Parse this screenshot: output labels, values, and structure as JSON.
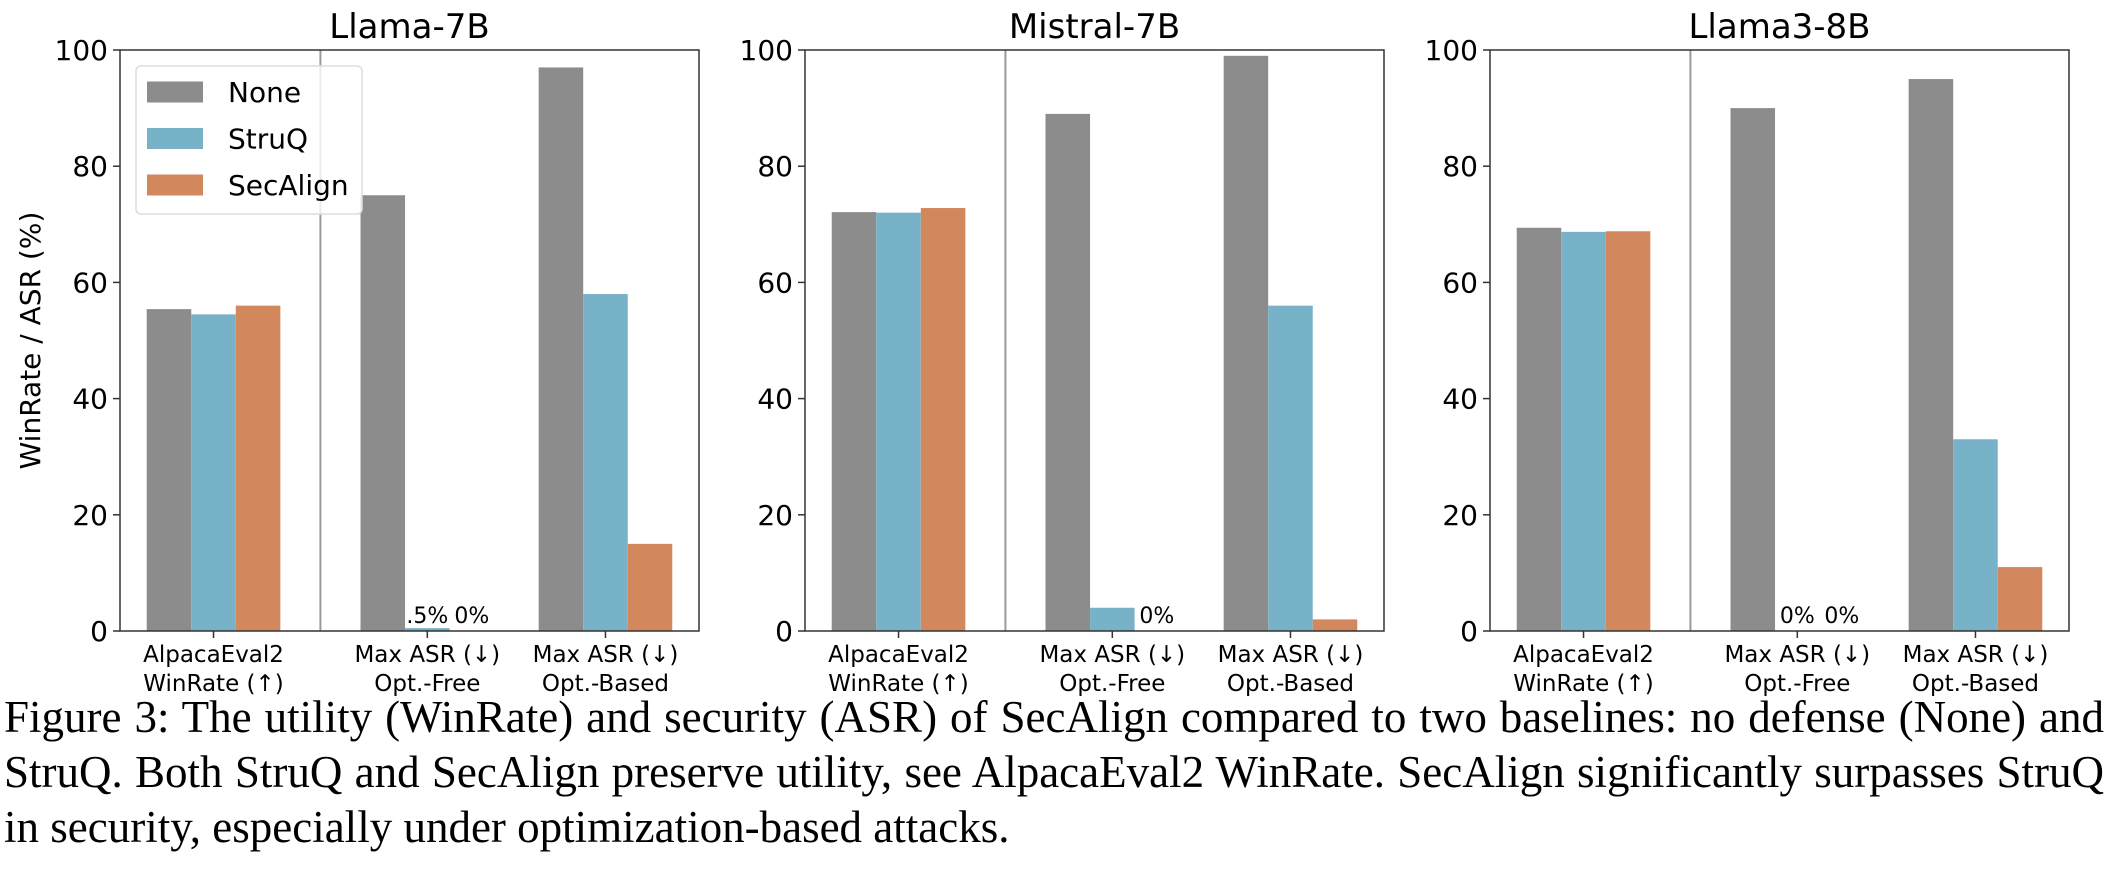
{
  "chart_data": [
    {
      "type": "bar",
      "title": "Llama-7B",
      "ylabel": "WinRate / ASR (%)",
      "ylim": [
        0,
        100
      ],
      "yticks": [
        0,
        20,
        40,
        60,
        80,
        100
      ],
      "categories": [
        "AlpacaEval2\nWinRate (↑)",
        "Max ASR (↓)\nOpt.-Free",
        "Max ASR (↓)\nOpt.-Based"
      ],
      "series": [
        {
          "name": "None",
          "values": [
            55.4,
            75,
            97
          ],
          "labels": [
            null,
            null,
            null
          ]
        },
        {
          "name": "StruQ",
          "values": [
            54.5,
            0.5,
            58
          ],
          "labels": [
            null,
            ".5%",
            null
          ]
        },
        {
          "name": "SecAlign",
          "values": [
            56,
            0,
            15
          ],
          "labels": [
            null,
            "0%",
            null
          ]
        }
      ],
      "legend": "upper-left",
      "grid": false
    },
    {
      "type": "bar",
      "title": "Mistral-7B",
      "ylim": [
        0,
        100
      ],
      "yticks": [
        0,
        20,
        40,
        60,
        80,
        100
      ],
      "categories": [
        "AlpacaEval2\nWinRate (↑)",
        "Max ASR (↓)\nOpt.-Free",
        "Max ASR (↓)\nOpt.-Based"
      ],
      "series": [
        {
          "name": "None",
          "values": [
            72.1,
            89,
            99
          ],
          "labels": [
            null,
            null,
            null
          ]
        },
        {
          "name": "StruQ",
          "values": [
            72.0,
            4,
            56
          ],
          "labels": [
            null,
            null,
            null
          ]
        },
        {
          "name": "SecAlign",
          "values": [
            72.8,
            0,
            2
          ],
          "labels": [
            null,
            "0%",
            null
          ]
        }
      ],
      "grid": false
    },
    {
      "type": "bar",
      "title": "Llama3-8B",
      "ylim": [
        0,
        100
      ],
      "yticks": [
        0,
        20,
        40,
        60,
        80,
        100
      ],
      "categories": [
        "AlpacaEval2\nWinRate (↑)",
        "Max ASR (↓)\nOpt.-Free",
        "Max ASR (↓)\nOpt.-Based"
      ],
      "series": [
        {
          "name": "None",
          "values": [
            69.4,
            90,
            95
          ],
          "labels": [
            null,
            null,
            null
          ]
        },
        {
          "name": "StruQ",
          "values": [
            68.7,
            0,
            33
          ],
          "labels": [
            null,
            "0%",
            null
          ]
        },
        {
          "name": "SecAlign",
          "values": [
            68.8,
            0,
            11
          ],
          "labels": [
            null,
            "0%",
            null
          ]
        }
      ],
      "grid": false
    }
  ],
  "colors": {
    "None": "#8c8c8c",
    "StruQ": "#78b2c8",
    "SecAlign": "#d2885c"
  },
  "caption": "Figure 3: The utility (WinRate) and security (ASR) of SecAlign compared to two baselines: no defense (None) and StruQ. Both StruQ and SecAlign preserve utility, see AlpacaEval2 WinRate. SecAlign significantly surpasses StruQ in security, especially under optimization-based attacks."
}
